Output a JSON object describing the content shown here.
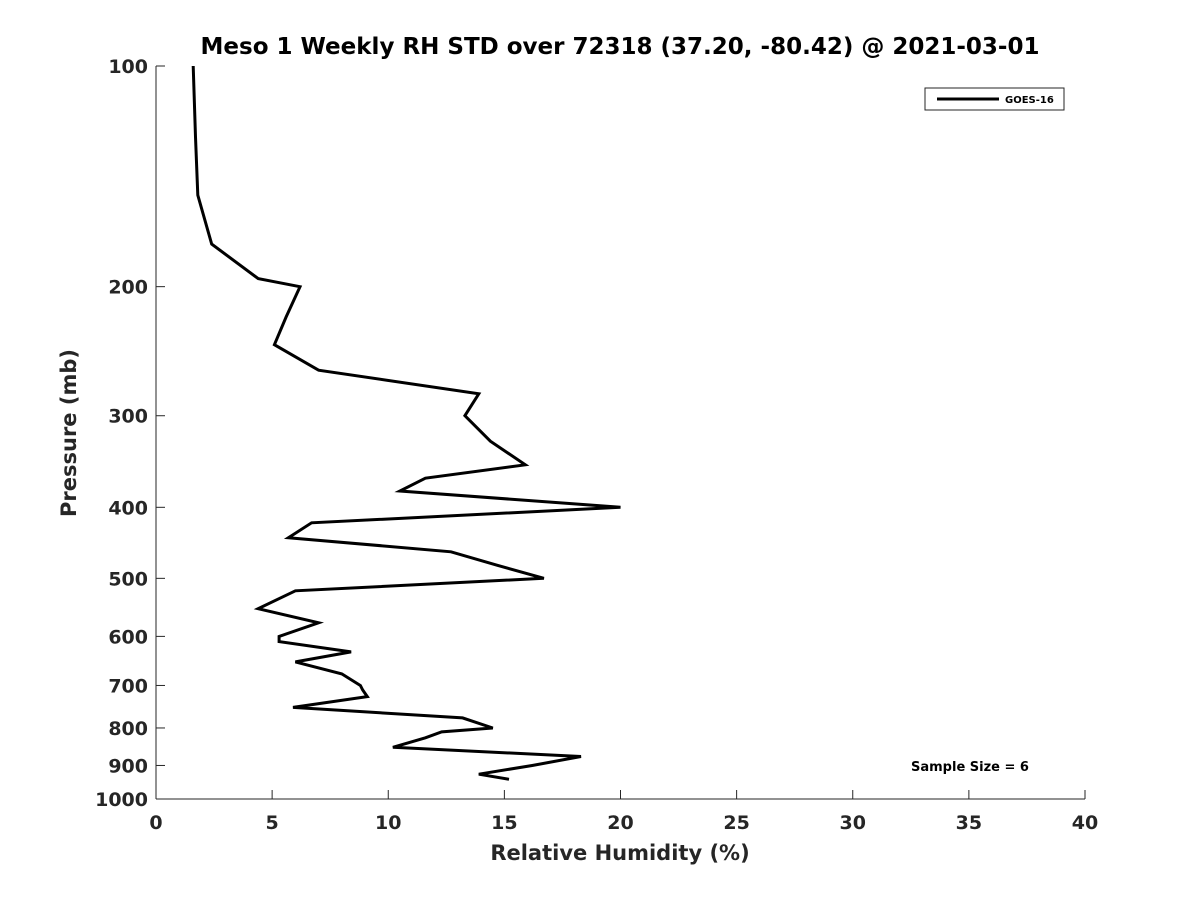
{
  "chart_data": {
    "type": "line",
    "title": "Meso 1 Weekly RH STD over 72318 (37.20, -80.42) @ 2021-03-01",
    "xlabel": "Relative Humidity (%)",
    "ylabel": "Pressure (mb)",
    "xlim": [
      0,
      40
    ],
    "ylim": [
      100,
      1000
    ],
    "y_scale": "log",
    "y_reversed": true,
    "x_ticks": [
      "0",
      "5",
      "10",
      "15",
      "20",
      "25",
      "30",
      "35",
      "40"
    ],
    "y_ticks": [
      "100",
      "200",
      "300",
      "400",
      "500",
      "600",
      "700",
      "800",
      "900",
      "1000"
    ],
    "grid": false,
    "legend_position": "top-right",
    "series": [
      {
        "name": "GOES-16",
        "color": "#000000",
        "x": [
          1.6,
          1.7,
          1.8,
          2.4,
          4.4,
          6.2,
          5.6,
          5.1,
          7.0,
          13.9,
          13.3,
          14.4,
          15.9,
          11.6,
          10.5,
          20.0,
          6.7,
          5.7,
          12.7,
          14.7,
          16.7,
          6.0,
          4.4,
          7.0,
          5.3,
          5.3,
          8.4,
          6.0,
          8.0,
          8.8,
          8.9,
          9.1,
          5.9,
          13.2,
          14.5,
          12.3,
          11.6,
          10.2,
          18.3,
          16.2,
          13.9,
          15.2
        ],
        "y": [
          100,
          125,
          150,
          175,
          195,
          200,
          220,
          240,
          260,
          280,
          300,
          325,
          350,
          365,
          380,
          400,
          420,
          440,
          460,
          480,
          500,
          520,
          550,
          575,
          600,
          610,
          630,
          650,
          675,
          700,
          710,
          725,
          750,
          775,
          800,
          810,
          825,
          850,
          875,
          900,
          925,
          940
        ]
      }
    ],
    "annotation": "Sample Size = 6"
  }
}
